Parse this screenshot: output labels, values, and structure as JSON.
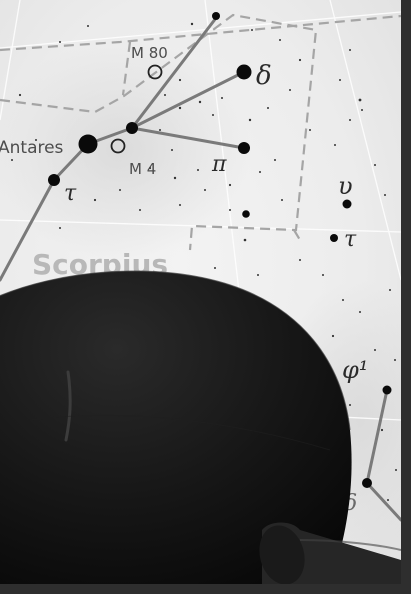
{
  "scene": {
    "description_free": true,
    "labels": {
      "antares": "Antares",
      "m80": "M 80",
      "m4": "M 4",
      "scorpius": "Scorpius",
      "delta": "δ",
      "pi": "π",
      "tau": "τ",
      "upsilon": "υ",
      "tau_right": "τ",
      "phi1": "φ¹",
      "delta_lower": "δ"
    }
  },
  "colors": {
    "frame": "#2e2e2e",
    "chart_bg": "#ededed",
    "dome": "#141414",
    "line": "#7a7a7a",
    "dashed": "#a5a5a5",
    "label": "#4d4d4d",
    "constellation_label": "#b8b8b8"
  }
}
